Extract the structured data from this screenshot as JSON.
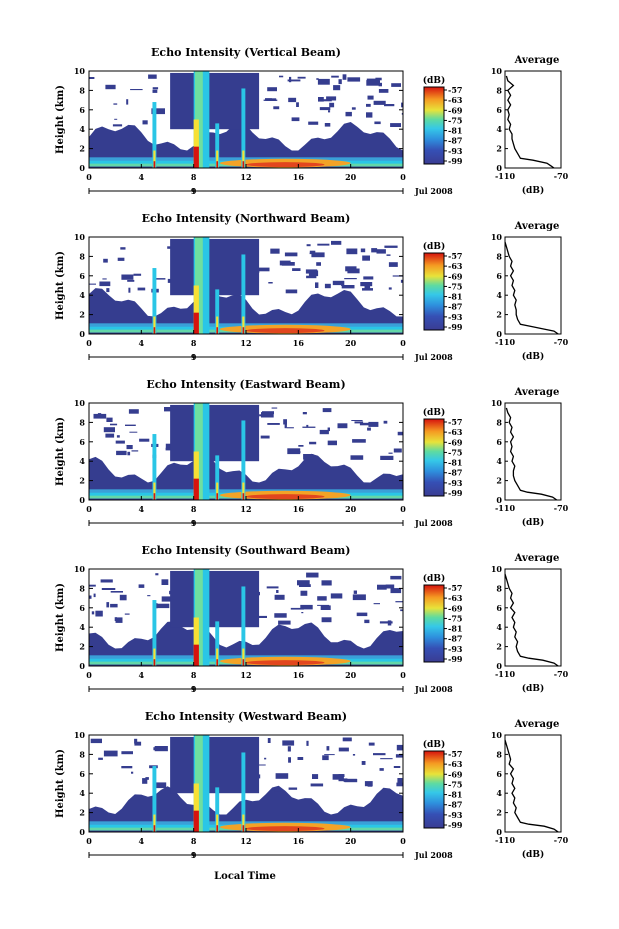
{
  "figure": {
    "xlabel_bottom": "Local Time"
  },
  "colors": {
    "low": "#353d8f",
    "mid": "#2ac6e6",
    "high": "#f7e034",
    "max": "#d6130e"
  },
  "chart_data": [
    {
      "type": "heatmap",
      "title": "Echo Intensity (Vertical Beam)",
      "ylabel": "Height (km)",
      "x_ticks": [
        "0",
        "4",
        "8",
        "12",
        "16",
        "20",
        "0"
      ],
      "y_ticks": [
        "0",
        "2",
        "4",
        "6",
        "8",
        "10"
      ],
      "xlim": [
        0,
        24
      ],
      "ylim": [
        0,
        10
      ],
      "day_marker": "9",
      "date": "Jul 2008",
      "colorbar": {
        "unit": "(dB)",
        "ticks": [
          "-57",
          "-63",
          "-69",
          "-75",
          "-81",
          "-87",
          "-93",
          "-99"
        ]
      },
      "average": {
        "title": "Average",
        "xlabel": "(dB)",
        "x_ticks": [
          "-110",
          "-70"
        ],
        "xlim": [
          -110,
          -70
        ],
        "y_ticks": [
          "0",
          "2",
          "4",
          "6",
          "8",
          "10"
        ],
        "ylim": [
          0,
          10
        ],
        "profile": [
          [
            -75,
            0
          ],
          [
            -77,
            0.2
          ],
          [
            -80,
            0.5
          ],
          [
            -90,
            0.8
          ],
          [
            -99,
            1.0
          ],
          [
            -101,
            1.5
          ],
          [
            -103,
            2.0
          ],
          [
            -104,
            2.5
          ],
          [
            -105,
            3.0
          ],
          [
            -105,
            3.5
          ],
          [
            -107,
            4.0
          ],
          [
            -106,
            4.5
          ],
          [
            -108,
            5.0
          ],
          [
            -107,
            5.5
          ],
          [
            -108,
            6.0
          ],
          [
            -106,
            6.5
          ],
          [
            -108,
            7.0
          ],
          [
            -106,
            7.5
          ],
          [
            -108,
            8.0
          ],
          [
            -104,
            8.5
          ],
          [
            -108,
            9.0
          ],
          [
            -109,
            9.5
          ]
        ]
      }
    },
    {
      "type": "heatmap",
      "title": "Echo Intensity (Northward Beam)",
      "ylabel": "Height (km)",
      "x_ticks": [
        "0",
        "4",
        "8",
        "12",
        "16",
        "20",
        "0"
      ],
      "y_ticks": [
        "0",
        "2",
        "4",
        "6",
        "8",
        "10"
      ],
      "xlim": [
        0,
        24
      ],
      "ylim": [
        0,
        10
      ],
      "day_marker": "9",
      "date": "Jul 2008",
      "colorbar": {
        "unit": "(dB)",
        "ticks": [
          "-57",
          "-63",
          "-69",
          "-75",
          "-81",
          "-87",
          "-93",
          "-99"
        ]
      },
      "average": {
        "title": "Average",
        "xlabel": "(dB)",
        "x_ticks": [
          "-110",
          "-70"
        ],
        "xlim": [
          -110,
          -70
        ],
        "y_ticks": [
          "0",
          "2",
          "4",
          "6",
          "8",
          "10"
        ],
        "ylim": [
          0,
          10
        ],
        "profile": [
          [
            -72,
            0
          ],
          [
            -75,
            0.3
          ],
          [
            -82,
            0.5
          ],
          [
            -92,
            0.8
          ],
          [
            -99,
            1.0
          ],
          [
            -101,
            1.5
          ],
          [
            -102,
            2.0
          ],
          [
            -102,
            2.5
          ],
          [
            -103,
            3.0
          ],
          [
            -102,
            3.5
          ],
          [
            -104,
            4.0
          ],
          [
            -103,
            4.5
          ],
          [
            -105,
            5.0
          ],
          [
            -104,
            5.5
          ],
          [
            -106,
            6.0
          ],
          [
            -104,
            6.5
          ],
          [
            -106,
            7.0
          ],
          [
            -105,
            7.5
          ],
          [
            -107,
            8.0
          ],
          [
            -108,
            8.5
          ],
          [
            -109,
            9.0
          ],
          [
            -110,
            9.5
          ]
        ]
      }
    },
    {
      "type": "heatmap",
      "title": "Echo Intensity (Eastward Beam)",
      "ylabel": "Height (km)",
      "x_ticks": [
        "0",
        "4",
        "8",
        "12",
        "16",
        "20",
        "0"
      ],
      "y_ticks": [
        "0",
        "2",
        "4",
        "6",
        "8",
        "10"
      ],
      "xlim": [
        0,
        24
      ],
      "ylim": [
        0,
        10
      ],
      "day_marker": "9",
      "date": "Jul 2008",
      "colorbar": {
        "unit": "(dB)",
        "ticks": [
          "-57",
          "-63",
          "-69",
          "-75",
          "-81",
          "-87",
          "-93",
          "-99"
        ]
      },
      "average": {
        "title": "Average",
        "xlabel": "(dB)",
        "x_ticks": [
          "-110",
          "-70"
        ],
        "xlim": [
          -110,
          -70
        ],
        "y_ticks": [
          "0",
          "2",
          "4",
          "6",
          "8",
          "10"
        ],
        "ylim": [
          0,
          10
        ],
        "profile": [
          [
            -73,
            0
          ],
          [
            -76,
            0.3
          ],
          [
            -84,
            0.6
          ],
          [
            -94,
            0.8
          ],
          [
            -99,
            1.0
          ],
          [
            -101,
            1.5
          ],
          [
            -103,
            2.0
          ],
          [
            -104,
            2.5
          ],
          [
            -104,
            3.0
          ],
          [
            -103,
            3.5
          ],
          [
            -105,
            4.0
          ],
          [
            -104,
            4.5
          ],
          [
            -106,
            5.0
          ],
          [
            -105,
            5.5
          ],
          [
            -106,
            6.0
          ],
          [
            -104,
            6.5
          ],
          [
            -106,
            7.0
          ],
          [
            -105,
            7.5
          ],
          [
            -107,
            8.0
          ],
          [
            -106,
            8.5
          ],
          [
            -108,
            9.0
          ],
          [
            -109,
            9.5
          ]
        ]
      }
    },
    {
      "type": "heatmap",
      "title": "Echo Intensity (Southward Beam)",
      "ylabel": "Height (km)",
      "x_ticks": [
        "0",
        "4",
        "8",
        "12",
        "16",
        "20",
        "0"
      ],
      "y_ticks": [
        "0",
        "2",
        "4",
        "6",
        "8",
        "10"
      ],
      "xlim": [
        0,
        24
      ],
      "ylim": [
        0,
        10
      ],
      "day_marker": "9",
      "date": "Jul 2008",
      "colorbar": {
        "unit": "(dB)",
        "ticks": [
          "-57",
          "-63",
          "-69",
          "-75",
          "-81",
          "-87",
          "-93",
          "-99"
        ]
      },
      "average": {
        "title": "Average",
        "xlabel": "(dB)",
        "x_ticks": [
          "-110",
          "-70"
        ],
        "xlim": [
          -110,
          -70
        ],
        "y_ticks": [
          "0",
          "2",
          "4",
          "6",
          "8",
          "10"
        ],
        "ylim": [
          0,
          10
        ],
        "profile": [
          [
            -72,
            0
          ],
          [
            -75,
            0.3
          ],
          [
            -83,
            0.6
          ],
          [
            -93,
            0.8
          ],
          [
            -99,
            1.0
          ],
          [
            -101,
            1.5
          ],
          [
            -102,
            2.0
          ],
          [
            -101,
            2.5
          ],
          [
            -103,
            3.0
          ],
          [
            -102,
            3.5
          ],
          [
            -104,
            4.0
          ],
          [
            -103,
            4.5
          ],
          [
            -105,
            5.0
          ],
          [
            -103,
            5.5
          ],
          [
            -106,
            6.0
          ],
          [
            -104,
            6.5
          ],
          [
            -106,
            7.0
          ],
          [
            -105,
            7.5
          ],
          [
            -107,
            8.0
          ],
          [
            -108,
            8.5
          ],
          [
            -109,
            9.0
          ],
          [
            -110,
            9.5
          ]
        ]
      }
    },
    {
      "type": "heatmap",
      "title": "Echo Intensity (Westward Beam)",
      "ylabel": "Height (km)",
      "x_ticks": [
        "0",
        "4",
        "8",
        "12",
        "16",
        "20",
        "0"
      ],
      "y_ticks": [
        "0",
        "2",
        "4",
        "6",
        "8",
        "10"
      ],
      "xlim": [
        0,
        24
      ],
      "ylim": [
        0,
        10
      ],
      "day_marker": "9",
      "date": "Jul 2008",
      "colorbar": {
        "unit": "(dB)",
        "ticks": [
          "-57",
          "-63",
          "-69",
          "-75",
          "-81",
          "-87",
          "-93",
          "-99"
        ]
      },
      "average": {
        "title": "Average",
        "xlabel": "(dB)",
        "x_ticks": [
          "-110",
          "-70"
        ],
        "xlim": [
          -110,
          -70
        ],
        "y_ticks": [
          "0",
          "2",
          "4",
          "6",
          "8",
          "10"
        ],
        "ylim": [
          0,
          10
        ],
        "profile": [
          [
            -72,
            0
          ],
          [
            -75,
            0.3
          ],
          [
            -82,
            0.6
          ],
          [
            -93,
            0.8
          ],
          [
            -99,
            1.0
          ],
          [
            -101,
            1.5
          ],
          [
            -103,
            2.0
          ],
          [
            -102,
            2.5
          ],
          [
            -104,
            3.0
          ],
          [
            -103,
            3.5
          ],
          [
            -105,
            4.0
          ],
          [
            -103,
            4.5
          ],
          [
            -105,
            5.0
          ],
          [
            -104,
            5.5
          ],
          [
            -106,
            6.0
          ],
          [
            -104,
            6.5
          ],
          [
            -107,
            7.0
          ],
          [
            -106,
            7.5
          ],
          [
            -107,
            8.0
          ],
          [
            -108,
            8.5
          ],
          [
            -109,
            9.0
          ],
          [
            -110,
            9.5
          ]
        ]
      }
    }
  ]
}
